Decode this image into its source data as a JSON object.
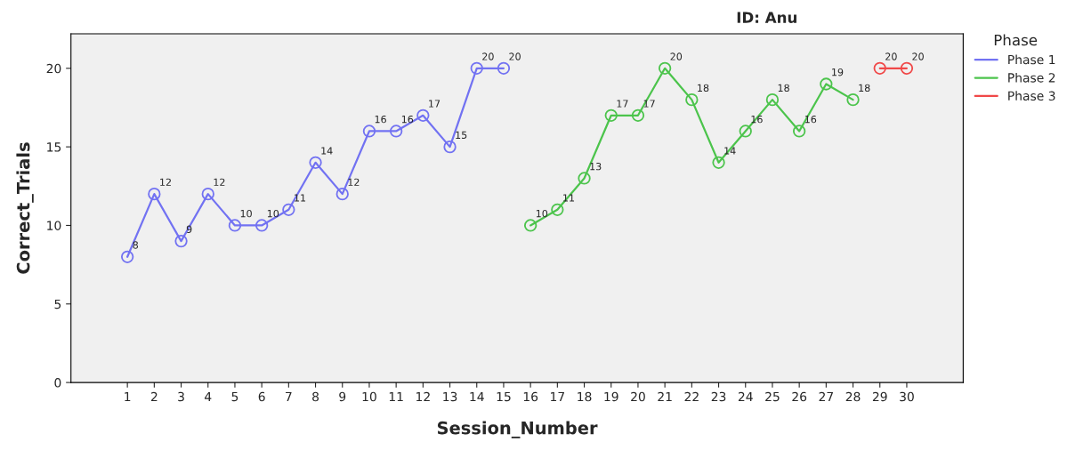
{
  "chart_data": {
    "type": "line",
    "title": "ID: Anu",
    "xlabel": "Session_Number",
    "ylabel": "Correct_Trials",
    "legend_title": "Phase",
    "series": [
      {
        "name": "Phase 1",
        "color": "#7272f2",
        "x": [
          1,
          2,
          3,
          4,
          5,
          6,
          7,
          8,
          9,
          10,
          11,
          12,
          13,
          14,
          15
        ],
        "values": [
          8,
          12,
          9,
          12,
          10,
          10,
          11,
          14,
          12,
          16,
          16,
          17,
          15,
          20,
          20
        ]
      },
      {
        "name": "Phase 2",
        "color": "#4cc44c",
        "x": [
          16,
          17,
          18,
          19,
          20,
          21,
          22,
          23,
          24,
          25,
          26,
          27,
          28
        ],
        "values": [
          10,
          11,
          13,
          17,
          17,
          20,
          18,
          14,
          16,
          18,
          16,
          19,
          18
        ]
      },
      {
        "name": "Phase 3",
        "color": "#f04848",
        "x": [
          29,
          30
        ],
        "values": [
          20,
          20
        ]
      }
    ],
    "xlim": [
      -1.1,
      32.1
    ],
    "xticks": [
      1,
      2,
      3,
      4,
      5,
      6,
      7,
      8,
      9,
      10,
      11,
      12,
      13,
      14,
      15,
      16,
      17,
      18,
      19,
      20,
      21,
      22,
      23,
      24,
      25,
      26,
      27,
      28,
      29,
      30
    ],
    "ylim": [
      0,
      22.2
    ],
    "yticks": [
      0,
      5,
      10,
      15,
      20
    ],
    "data_labels": true,
    "marker": "circle",
    "line_style": "solid",
    "grid": false,
    "legend": "top right"
  }
}
